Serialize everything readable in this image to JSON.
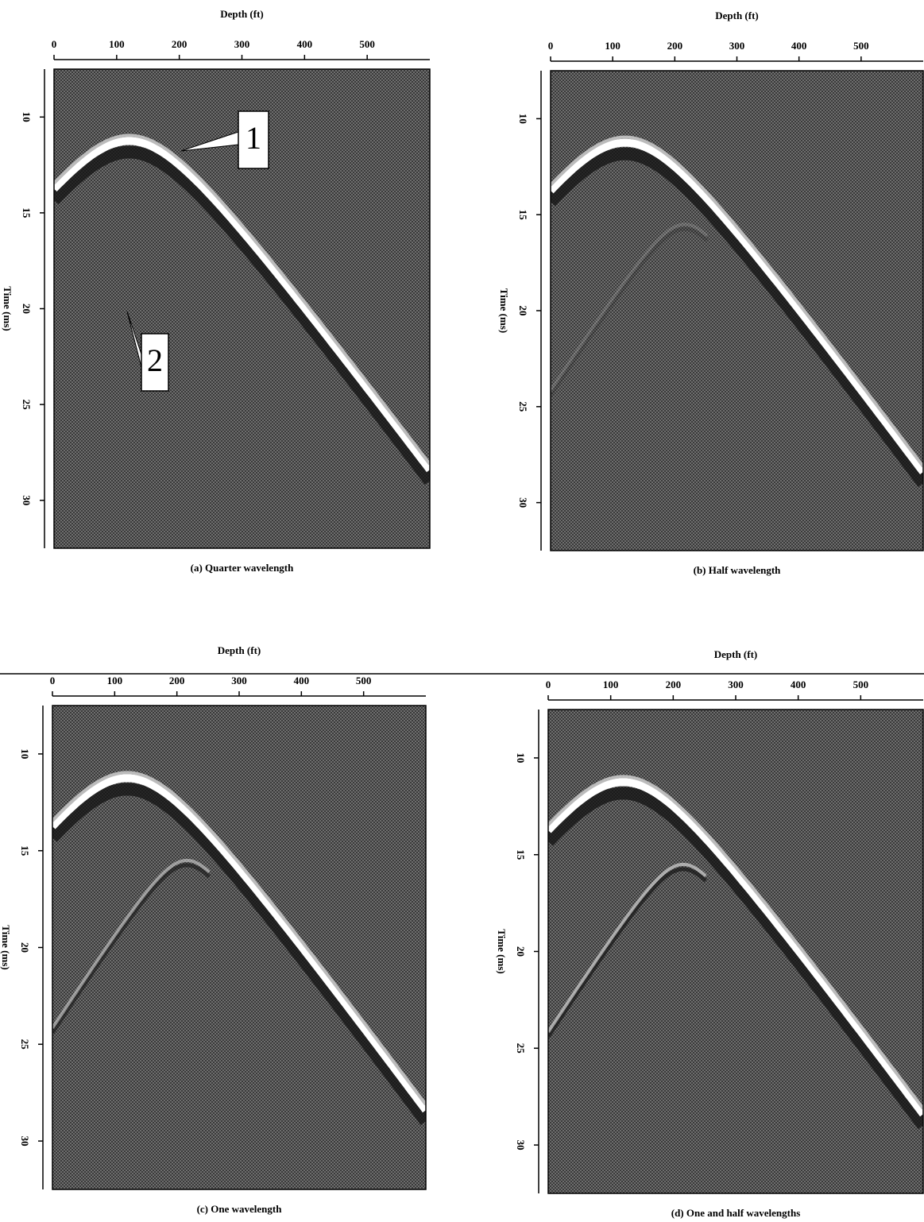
{
  "chart_data": [
    {
      "type": "seismic",
      "title": "(a) Quarter wavelength",
      "xlabel": "Depth (ft)",
      "ylabel": "Time (ms)",
      "xlim": [
        0,
        600
      ],
      "xticks": [
        0,
        100,
        200,
        300,
        400,
        500
      ],
      "ylim": [
        7.5,
        32.5
      ],
      "yticks": [
        10,
        15,
        20,
        25,
        30
      ],
      "annotations": [
        "1",
        "2"
      ]
    },
    {
      "type": "seismic",
      "title": "(b) Half wavelength",
      "xlabel": "Depth (ft)",
      "ylabel": "Time (ms)",
      "xlim": [
        0,
        600
      ],
      "xticks": [
        0,
        100,
        200,
        300,
        400,
        500
      ],
      "ylim": [
        7.5,
        32.5
      ],
      "yticks": [
        10,
        15,
        20,
        25,
        30
      ]
    },
    {
      "type": "seismic",
      "title": "(c) One wavelength",
      "xlabel": "Depth (ft)",
      "ylabel": "Time (ms)",
      "xlim": [
        0,
        600
      ],
      "xticks": [
        0,
        100,
        200,
        300,
        400,
        500
      ],
      "ylim": [
        7.5,
        32.5
      ],
      "yticks": [
        10,
        15,
        20,
        25,
        30
      ]
    },
    {
      "type": "seismic",
      "title": "(d) One and half wavelengths",
      "xlabel": "Depth (ft)",
      "ylabel": "Time (ms)",
      "xlim": [
        0,
        600
      ],
      "xticks": [
        0,
        100,
        200,
        300,
        400,
        500
      ],
      "ylim": [
        7.5,
        32.5
      ],
      "yticks": [
        10,
        15,
        20,
        25,
        30
      ]
    }
  ]
}
